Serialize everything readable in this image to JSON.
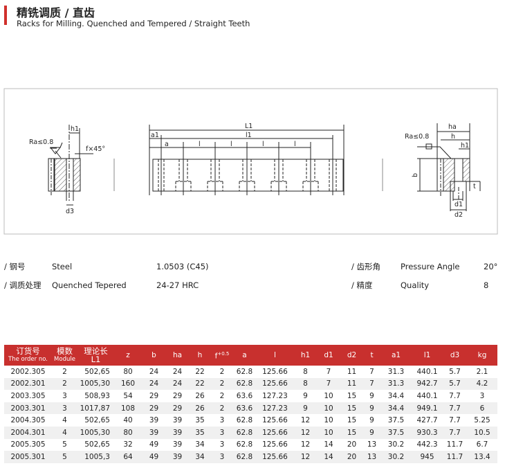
{
  "header": {
    "title_cn": "精铣调质 / 直齿",
    "title_en": "Racks for Milling. Quenched and Tempered / Straight Teeth",
    "accent_color": "#d0302c"
  },
  "drawing": {
    "labels": {
      "ra": "Ra≤0.8",
      "h1": "h1",
      "f45": "f×45°",
      "d3": "d3",
      "L1": "L1",
      "a1": "a1",
      "l1": "l1",
      "a": "a",
      "l": "l",
      "ha": "ha",
      "h": "h",
      "b": "b",
      "d1": "d1",
      "d2": "d2",
      "t": "t"
    }
  },
  "specs": {
    "left": [
      {
        "cn": "/ 钢号",
        "en": "Steel",
        "value": "1.0503 (C45)"
      },
      {
        "cn": "/ 调质处理",
        "en": "Quenched Tepered",
        "value": "24-27 HRC"
      }
    ],
    "right": [
      {
        "cn": "/ 齿形角",
        "en": "Pressure Angle",
        "value": "20°"
      },
      {
        "cn": "/ 精度",
        "en": "Quality",
        "value": "8"
      }
    ]
  },
  "table": {
    "header_color": "#c8302e",
    "headers": {
      "order_cn": "订货号",
      "order_en": "The order no.",
      "module_cn": "模数",
      "module_en": "Module",
      "L1_cn": "理论长",
      "L1_en": "L1",
      "z": "z",
      "b": "b",
      "ha": "ha",
      "h": "h",
      "f": "f",
      "f_sup": "+0.5",
      "a": "a",
      "l": "l",
      "h1": "h1",
      "d1": "d1",
      "d2": "d2",
      "t": "t",
      "a1": "a1",
      "l1": "l1",
      "d3": "d3",
      "kg": "kg"
    },
    "rows": [
      [
        "2002.305",
        "2",
        "502,65",
        "80",
        "24",
        "24",
        "22",
        "2",
        "62.8",
        "125.66",
        "8",
        "7",
        "11",
        "7",
        "31.3",
        "440.1",
        "5.7",
        "2.1"
      ],
      [
        "2002.301",
        "2",
        "1005,30",
        "160",
        "24",
        "24",
        "22",
        "2",
        "62.8",
        "125.66",
        "8",
        "7",
        "11",
        "7",
        "31.3",
        "942.7",
        "5.7",
        "4.2"
      ],
      [
        "2003.305",
        "3",
        "508,93",
        "54",
        "29",
        "29",
        "26",
        "2",
        "63.6",
        "127.23",
        "9",
        "10",
        "15",
        "9",
        "34.4",
        "440.1",
        "7.7",
        "3"
      ],
      [
        "2003.301",
        "3",
        "1017,87",
        "108",
        "29",
        "29",
        "26",
        "2",
        "63.6",
        "127.23",
        "9",
        "10",
        "15",
        "9",
        "34.4",
        "949.1",
        "7.7",
        "6"
      ],
      [
        "2004.305",
        "4",
        "502,65",
        "40",
        "39",
        "39",
        "35",
        "3",
        "62.8",
        "125.66",
        "12",
        "10",
        "15",
        "9",
        "37.5",
        "427.7",
        "7.7",
        "5.25"
      ],
      [
        "2004.301",
        "4",
        "1005,30",
        "80",
        "39",
        "39",
        "35",
        "3",
        "62.8",
        "125.66",
        "12",
        "10",
        "15",
        "9",
        "37.5",
        "930.3",
        "7.7",
        "10.5"
      ],
      [
        "2005.305",
        "5",
        "502,65",
        "32",
        "49",
        "39",
        "34",
        "3",
        "62.8",
        "125.66",
        "12",
        "14",
        "20",
        "13",
        "30.2",
        "442.3",
        "11.7",
        "6.7"
      ],
      [
        "2005.301",
        "5",
        "1005,3",
        "64",
        "49",
        "39",
        "34",
        "3",
        "62.8",
        "125.66",
        "12",
        "14",
        "20",
        "13",
        "30.2",
        "945",
        "11.7",
        "13.4"
      ]
    ]
  }
}
